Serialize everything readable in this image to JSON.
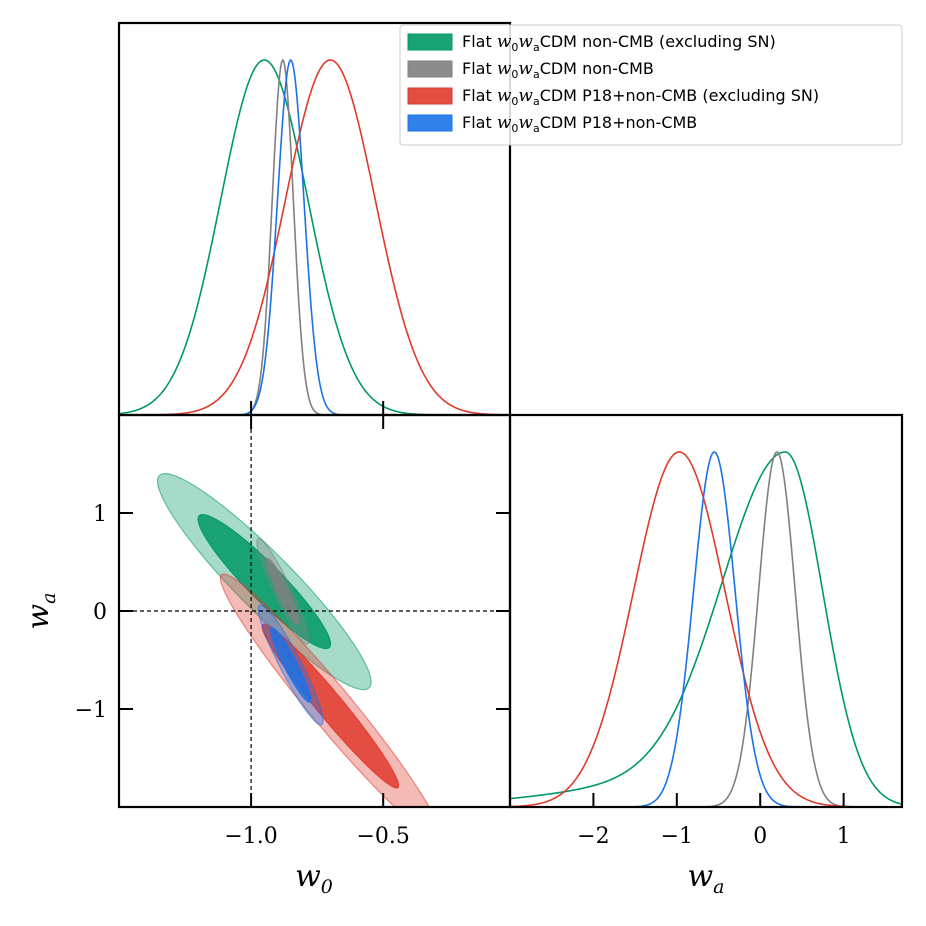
{
  "chart_data": {
    "type": "corner-triangle-plot",
    "parameters": [
      {
        "symbol": "w",
        "sub": "0",
        "range": [
          -1.5,
          -0.02
        ],
        "ticks": [
          -1.0,
          -0.5
        ],
        "tick_labels": [
          "−1.0",
          "−0.5"
        ]
      },
      {
        "symbol": "w",
        "sub": "a",
        "range": [
          -2.0,
          2.0
        ],
        "ticks": [
          -1,
          0,
          1
        ],
        "tick_labels": [
          "−1",
          "0",
          "1"
        ]
      }
    ],
    "wa_1d_range": [
      -3.0,
      1.7
    ],
    "wa_1d_ticks": [
      -2,
      -1,
      0,
      1
    ],
    "wa_1d_tick_labels": [
      "−2",
      "−1",
      "0",
      "1"
    ],
    "reference_lines": {
      "w0": -1.0,
      "wa": 0.0
    },
    "legend": {
      "placement": "top-right",
      "entries": [
        {
          "prefix": "Flat",
          "model": "w",
          "sub1": "0",
          "sub2": "a",
          "suffix": "CDM non-CMB (excluding SN)"
        },
        {
          "prefix": "Flat",
          "model": "w",
          "sub1": "0",
          "sub2": "a",
          "suffix": "CDM non-CMB"
        },
        {
          "prefix": "Flat",
          "model": "w",
          "sub1": "0",
          "sub2": "a",
          "suffix": "CDM P18+non-CMB (excluding SN)"
        },
        {
          "prefix": "Flat",
          "model": "w",
          "sub1": "0",
          "sub2": "a",
          "suffix": "CDM P18+non-CMB"
        }
      ]
    },
    "series": [
      {
        "name": "Flat w0waCDM non-CMB (excluding SN)",
        "color": "#009966",
        "w0_mean": -0.95,
        "w0_sigma": 0.165,
        "wa_mean": 0.3,
        "wa_sigma": 0.45,
        "wa_skew_sigma_low": 0.75,
        "corr": -0.93
      },
      {
        "name": "Flat w0waCDM non-CMB",
        "color": "#808080",
        "w0_mean": -0.88,
        "w0_sigma": 0.04,
        "wa_mean": 0.2,
        "wa_sigma": 0.22,
        "corr": -0.93
      },
      {
        "name": "Flat w0waCDM P18+non-CMB (excluding SN)",
        "color": "#e03a2e",
        "w0_mean": -0.7,
        "w0_sigma": 0.17,
        "wa_mean": -0.97,
        "wa_sigma": 0.55,
        "corr": -0.97
      },
      {
        "name": "Flat w0waCDM P18+non-CMB",
        "color": "#1a73e8",
        "w0_mean": -0.85,
        "w0_sigma": 0.05,
        "wa_mean": -0.55,
        "wa_sigma": 0.25,
        "corr": -0.93
      }
    ]
  }
}
